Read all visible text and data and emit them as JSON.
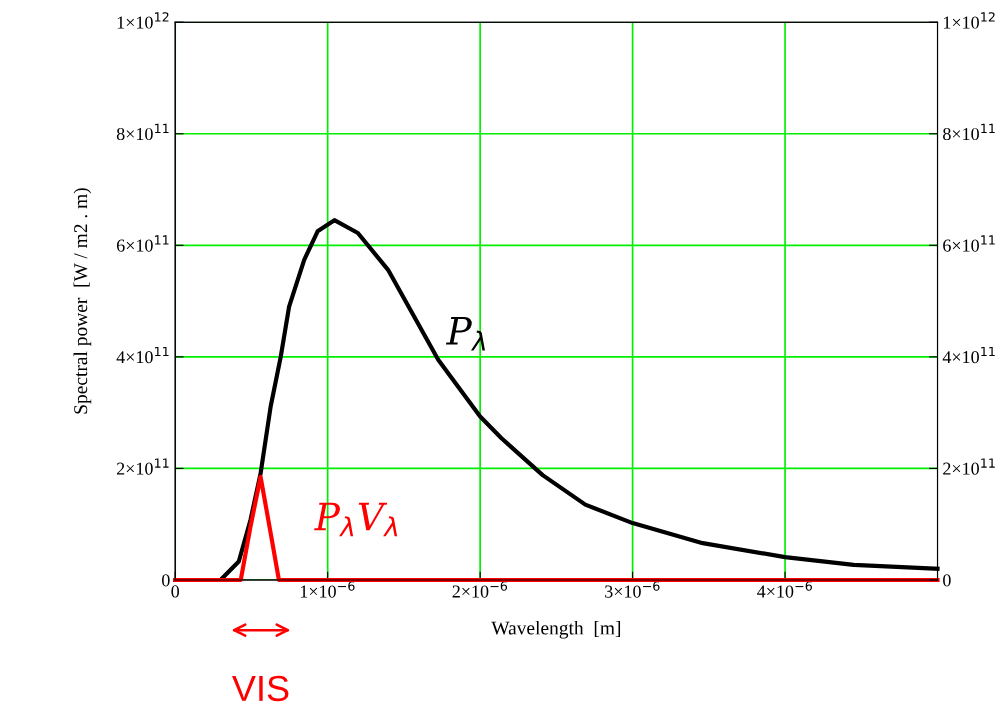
{
  "chart_data": {
    "type": "line",
    "xlabel": "Wavelength  [m]",
    "ylabel": "Spectral power  [W / m2 . m)",
    "x": [
      0,
      2.97e-07,
      4.17e-07,
      4.94e-07,
      5.6e-07,
      6.26e-07,
      6.92e-07,
      7.47e-07,
      8.46e-07,
      9.34e-07,
      1.044e-06,
      1.198e-06,
      1.396e-06,
      1.725e-06,
      2e-06,
      2.14e-06,
      2.41e-06,
      2.69e-06,
      3e-06,
      3.46e-06,
      4e-06,
      4.45e-06,
      5e-06
    ],
    "series": [
      {
        "name": "P$_{λ}$",
        "color": "#000000",
        "values": [
          0,
          0,
          33000000000.0,
          108000000000.0,
          191000000000.0,
          311000000000.0,
          400000000000.0,
          490000000000.0,
          574000000000.0,
          625000000000.0,
          645000000000.0,
          622000000000.0,
          556000000000.0,
          395000000000.0,
          293000000000.0,
          254000000000.0,
          188000000000.0,
          135000000000.0,
          102000000000.0,
          66000000000.0,
          41000000000.0,
          27000000000.0,
          20000000000.0
        ]
      },
      {
        "name": "P$_{λ}$V$_{λ}$",
        "color": "#ff0000",
        "x": [
          0,
          4.3e-07,
          4.94e-07,
          5.6e-07,
          6.26e-07,
          6.8e-07,
          5e-06
        ],
        "values": [
          0,
          0,
          96000000000.0,
          185000000000.0,
          84000000000.0,
          0,
          0
        ]
      }
    ],
    "xlim": [
      0,
      5e-06
    ],
    "ylim": [
      0,
      1000000000000.0
    ],
    "y2lim": [
      0,
      1000000000000.0
    ],
    "xticks": [
      0,
      {
        "value": 1e-06,
        "label": "1×10$^{−6}$"
      },
      {
        "value": 2e-06,
        "label": "2×10$^{−6}$"
      },
      {
        "value": 3e-06,
        "label": "3×10$^{−6}$"
      },
      {
        "value": 4e-06,
        "label": "4×10$^{−6}$"
      }
    ],
    "yticks": [
      0,
      {
        "value": 200000000000.0,
        "label": "2×10$^{11}$"
      },
      {
        "value": 400000000000.0,
        "label": "4×10$^{11}$"
      },
      {
        "value": 600000000000.0,
        "label": "6×10$^{11}$"
      },
      {
        "value": 800000000000.0,
        "label": "8×10$^{11}$"
      },
      {
        "value": 1000000000000.0,
        "label": "1×10$^{12}$"
      }
    ],
    "y2ticks": [
      0,
      {
        "value": 200000000000.0,
        "label": "2×10$^{11}$"
      },
      {
        "value": 400000000000.0,
        "label": "4×10$^{11}$"
      },
      {
        "value": 600000000000.0,
        "label": "6×10$^{11}$"
      },
      {
        "value": 800000000000.0,
        "label": "8×10$^{11}$"
      },
      {
        "value": 1000000000000.0,
        "label": "1×10$^{12}$"
      }
    ],
    "annotations": [
      "VIS"
    ],
    "grid": true,
    "legend": false,
    "marker": "none",
    "line_style": "solid"
  }
}
